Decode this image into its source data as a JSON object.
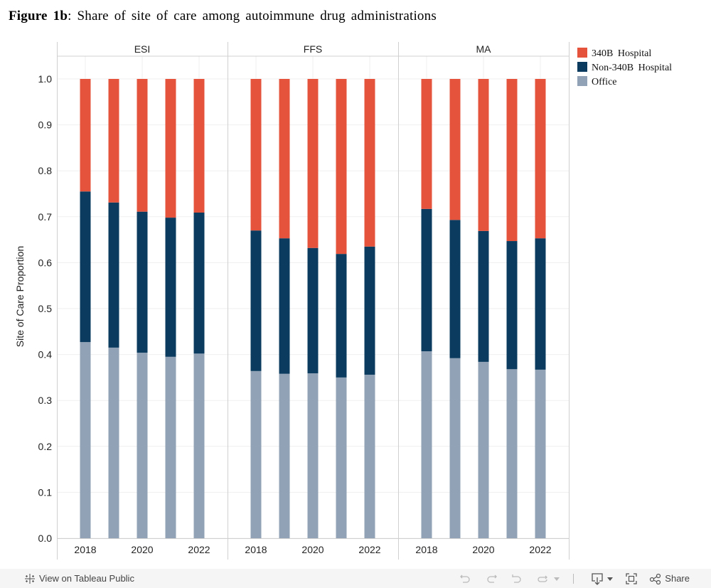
{
  "title": {
    "bold": "Figure 1b",
    "rest": ": Share of site of care among autoimmune drug administrations"
  },
  "chart_data": {
    "type": "bar",
    "stacked": true,
    "title": "Figure 1b: Share of site of care among autoimmune drug administrations",
    "xlabel": "",
    "ylabel": "Site of Care Proportion",
    "ylim": [
      0,
      1.0
    ],
    "yticks": [
      "0.0",
      "0.1",
      "0.2",
      "0.3",
      "0.4",
      "0.5",
      "0.6",
      "0.7",
      "0.8",
      "0.9",
      "1.0"
    ],
    "grid": true,
    "legend_position": "top-right",
    "categories": [
      "2018",
      "2019",
      "2020",
      "2021",
      "2022"
    ],
    "xtick_labels": [
      "2018",
      "",
      "2020",
      "",
      "2022"
    ],
    "panels": [
      {
        "name": "ESI",
        "series": [
          {
            "name": "Office",
            "values": [
              0.427,
              0.415,
              0.404,
              0.395,
              0.402
            ]
          },
          {
            "name": "Non-340B Hospital",
            "values": [
              0.328,
              0.316,
              0.307,
              0.303,
              0.307
            ]
          },
          {
            "name": "340B Hospital",
            "values": [
              0.245,
              0.269,
              0.289,
              0.302,
              0.291
            ]
          }
        ]
      },
      {
        "name": "FFS",
        "series": [
          {
            "name": "Office",
            "values": [
              0.364,
              0.358,
              0.359,
              0.35,
              0.356
            ]
          },
          {
            "name": "Non-340B Hospital",
            "values": [
              0.306,
              0.295,
              0.273,
              0.269,
              0.279
            ]
          },
          {
            "name": "340B Hospital",
            "values": [
              0.33,
              0.347,
              0.368,
              0.381,
              0.365
            ]
          }
        ]
      },
      {
        "name": "MA",
        "series": [
          {
            "name": "Office",
            "values": [
              0.407,
              0.392,
              0.384,
              0.368,
              0.367
            ]
          },
          {
            "name": "Non-340B Hospital",
            "values": [
              0.31,
              0.301,
              0.285,
              0.279,
              0.286
            ]
          },
          {
            "name": "340B Hospital",
            "values": [
              0.283,
              0.307,
              0.331,
              0.353,
              0.347
            ]
          }
        ]
      }
    ],
    "colors": {
      "340B Hospital": "#e6533c",
      "Non-340B Hospital": "#0b3c5f",
      "Office": "#92a2b6"
    }
  },
  "legend": {
    "items": [
      {
        "label": "340B Hospital",
        "color": "#e6533c"
      },
      {
        "label": "Non-340B Hospital",
        "color": "#0b3c5f"
      },
      {
        "label": "Office",
        "color": "#92a2b6"
      }
    ]
  },
  "footer": {
    "view_label": "View on Tableau Public",
    "share_label": "Share",
    "icons": [
      "tableau-logo-icon",
      "undo-icon",
      "redo-icon",
      "revert-icon",
      "refresh-icon",
      "dropdown-icon",
      "download-icon",
      "fullscreen-icon",
      "share-icon"
    ]
  }
}
